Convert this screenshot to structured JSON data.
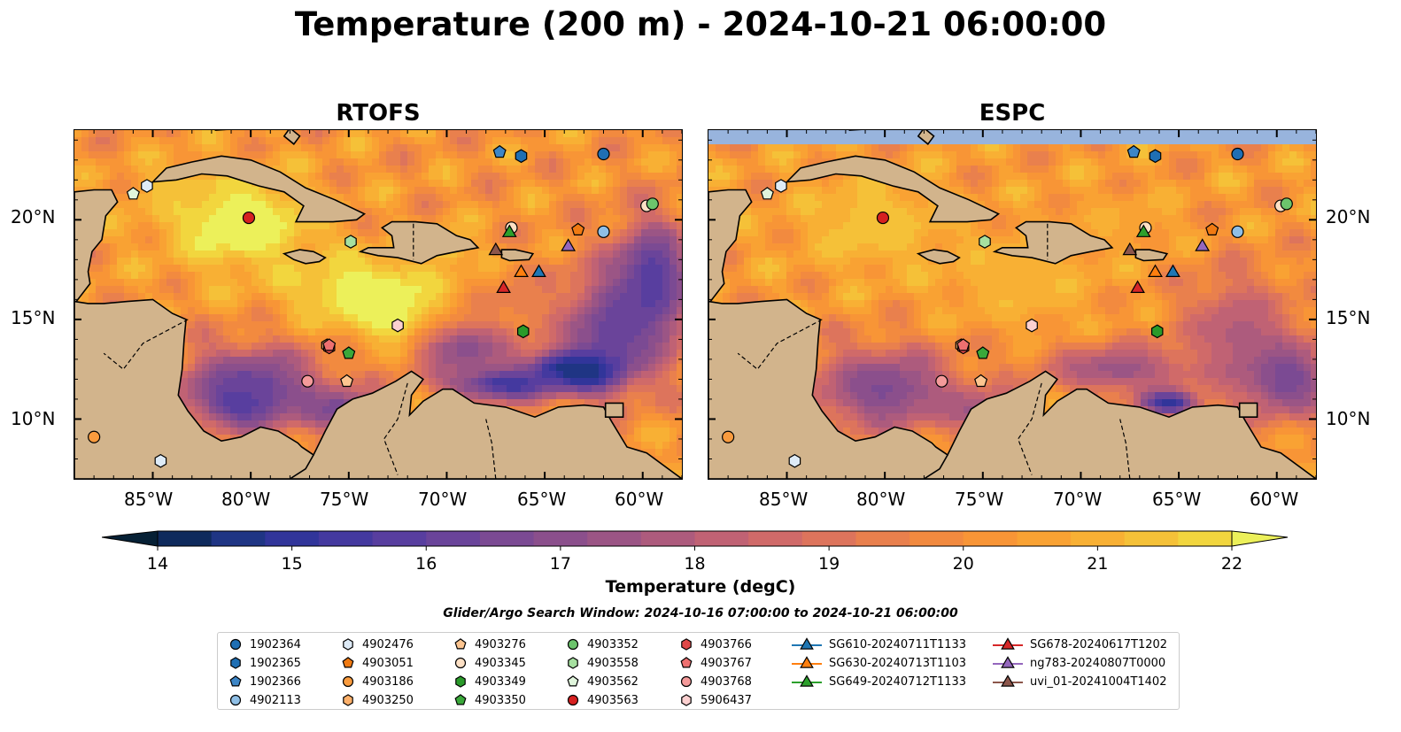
{
  "title": "Temperature (200 m) - 2024-10-21 06:00:00",
  "panels": [
    {
      "title": "RTOFS"
    },
    {
      "title": "ESPC"
    }
  ],
  "axes": {
    "x_ticks": [
      "85°W",
      "80°W",
      "75°W",
      "70°W",
      "65°W",
      "60°W"
    ],
    "y_ticks": [
      "20°N",
      "15°N",
      "10°N"
    ],
    "lon_range": [
      -89,
      -58
    ],
    "lat_range": [
      7,
      24.5
    ]
  },
  "colorbar": {
    "label": "Temperature (degC)",
    "ticks": [
      "14",
      "15",
      "16",
      "17",
      "18",
      "19",
      "20",
      "21",
      "22"
    ],
    "range": [
      14,
      22
    ],
    "extend": "both",
    "colors": [
      "#062035",
      "#0e2a5c",
      "#1f3584",
      "#31359a",
      "#44399f",
      "#583e9f",
      "#6a449a",
      "#7b4a93",
      "#8b4f8c",
      "#9b5585",
      "#ad5b7d",
      "#c06274",
      "#d06a69",
      "#dd745c",
      "#e9804d",
      "#f28a3f",
      "#f89536",
      "#f9a233",
      "#f8b034",
      "#f5c138",
      "#f2d63e",
      "#ecf05a"
    ],
    "land_color": "#d2b48c",
    "shelf_color": "#98b4dd"
  },
  "search_window": "Glider/Argo Search Window: 2024-10-16 07:00:00 to 2024-10-21 06:00:00",
  "legend": [
    {
      "label": "1902364",
      "marker": "circle",
      "color": "#1f6fb4"
    },
    {
      "label": "1902365",
      "marker": "hexagon",
      "color": "#1f6fb4"
    },
    {
      "label": "1902366",
      "marker": "pentagon",
      "color": "#3d86c6"
    },
    {
      "label": "4902113",
      "marker": "circle",
      "color": "#8fbfe6"
    },
    {
      "label": "4902476",
      "marker": "hexagon",
      "color": "#deebf7"
    },
    {
      "label": "4903051",
      "marker": "pentagon",
      "color": "#f07a12"
    },
    {
      "label": "4903186",
      "marker": "circle",
      "color": "#f99b3e"
    },
    {
      "label": "4903250",
      "marker": "hexagon",
      "color": "#fdb06a"
    },
    {
      "label": "4903276",
      "marker": "pentagon",
      "color": "#fdc590"
    },
    {
      "label": "4903345",
      "marker": "circle",
      "color": "#fde0c5"
    },
    {
      "label": "4903349",
      "marker": "hexagon",
      "color": "#2a9a2a"
    },
    {
      "label": "4903350",
      "marker": "pentagon",
      "color": "#3aa83a"
    },
    {
      "label": "4903352",
      "marker": "circle",
      "color": "#6cc46c"
    },
    {
      "label": "4903558",
      "marker": "hexagon",
      "color": "#a6e0a0"
    },
    {
      "label": "4903562",
      "marker": "pentagon",
      "color": "#e0f5dc"
    },
    {
      "label": "4903563",
      "marker": "circle",
      "color": "#d62020"
    },
    {
      "label": "4903766",
      "marker": "hexagon",
      "color": "#e04848"
    },
    {
      "label": "4903767",
      "marker": "pentagon",
      "color": "#ee7070"
    },
    {
      "label": "4903768",
      "marker": "circle",
      "color": "#f49a9a"
    },
    {
      "label": "5906437",
      "marker": "hexagon",
      "color": "#fcd0d0"
    },
    {
      "label": "SG610-20240711T1133",
      "marker": "triangle-line",
      "color": "#1f77b4"
    },
    {
      "label": "SG630-20240713T1103",
      "marker": "triangle-line",
      "color": "#ff7f0e"
    },
    {
      "label": "SG649-20240712T1133",
      "marker": "triangle-line",
      "color": "#2ca02c"
    },
    {
      "label": "SG678-20240617T1202",
      "marker": "triangle-line",
      "color": "#d62728"
    },
    {
      "label": "ng783-20240807T0000",
      "marker": "triangle-line",
      "color": "#9467bd"
    },
    {
      "label": "uvi_01-20241004T1402",
      "marker": "triangle-line",
      "color": "#8c564b"
    }
  ],
  "platforms": [
    {
      "id": "1902364",
      "lon": -62.0,
      "lat": 23.3
    },
    {
      "id": "1902365",
      "lon": -66.2,
      "lat": 23.2
    },
    {
      "id": "1902366",
      "lon": -67.3,
      "lat": 23.4
    },
    {
      "id": "4902113",
      "lon": -62.0,
      "lat": 19.4
    },
    {
      "id": "4902476",
      "lon": -84.6,
      "lat": 7.9
    },
    {
      "id": "4903051",
      "lon": -63.3,
      "lat": 19.5
    },
    {
      "id": "4903186",
      "lon": -88.0,
      "lat": 9.1
    },
    {
      "id": "4903250",
      "lon": -76.1,
      "lat": 13.7
    },
    {
      "id": "4903276",
      "lon": -75.1,
      "lat": 11.9
    },
    {
      "id": "4903345",
      "lon": -59.8,
      "lat": 20.7
    },
    {
      "id": "4903349",
      "lon": -66.1,
      "lat": 14.4
    },
    {
      "id": "4903350",
      "lon": -75.0,
      "lat": 13.3
    },
    {
      "id": "4903352",
      "lon": -59.5,
      "lat": 20.8
    },
    {
      "id": "4903558",
      "lon": -74.9,
      "lat": 18.9
    },
    {
      "id": "4903562",
      "lon": -86.0,
      "lat": 21.3
    },
    {
      "id": "4903563",
      "lon": -80.1,
      "lat": 20.1
    },
    {
      "id": "4903766",
      "lon": -76.0,
      "lat": 13.6
    },
    {
      "id": "4903767",
      "lon": -76.0,
      "lat": 13.7
    },
    {
      "id": "4903768",
      "lon": -77.1,
      "lat": 11.9
    },
    {
      "id": "5906437",
      "lon": -72.5,
      "lat": 14.7
    },
    {
      "id": "5906437b",
      "lon": -85.3,
      "lat": 21.7
    },
    {
      "id": "SG610-20240711T1133",
      "lon": -65.3,
      "lat": 17.4
    },
    {
      "id": "SG630-20240713T1103",
      "lon": -66.2,
      "lat": 17.4
    },
    {
      "id": "SG630b",
      "lon": -66.7,
      "lat": 19.6
    },
    {
      "id": "SG649-20240712T1133",
      "lon": -66.8,
      "lat": 19.4
    },
    {
      "id": "SG678-20240617T1202",
      "lon": -67.1,
      "lat": 16.6
    },
    {
      "id": "ng783-20240807T0000",
      "lon": -63.8,
      "lat": 18.7
    },
    {
      "id": "uvi_01-20241004T1402",
      "lon": -67.5,
      "lat": 18.5
    }
  ]
}
